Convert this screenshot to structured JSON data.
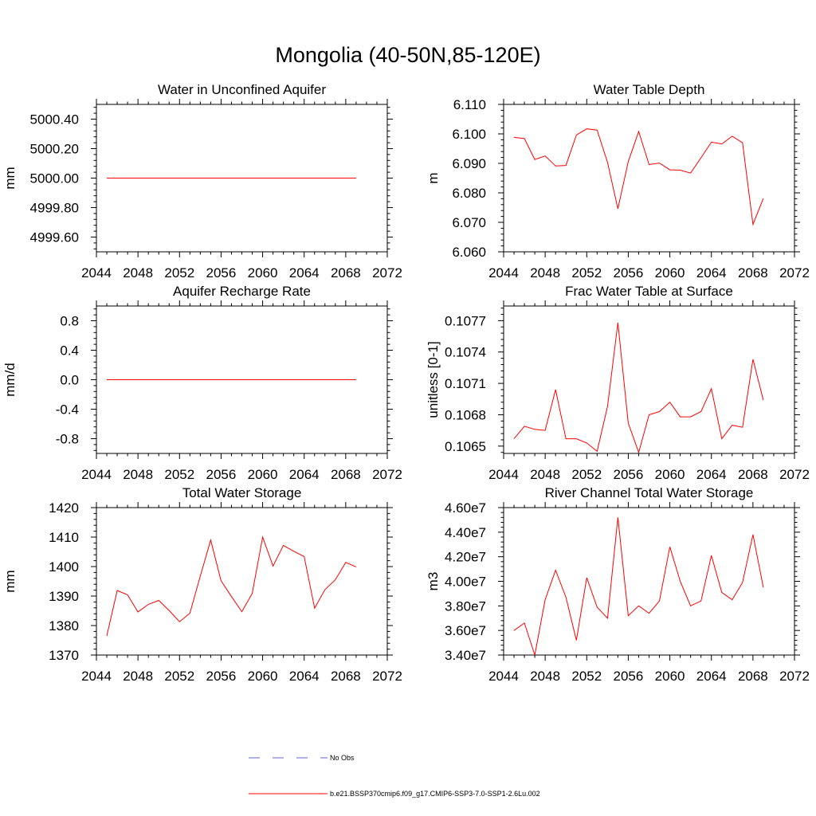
{
  "figure": {
    "title": "Mongolia (40-50N,85-120E)"
  },
  "legend": {
    "items": [
      {
        "label": "No Obs",
        "color": "#6666cc",
        "dash": "dashed"
      },
      {
        "label": "b.e21.BSSP370cmip6.f09_g17.CMIP6-SSP3-7.0-SSP1-2.6Lu.002",
        "color": "#ff0000",
        "dash": "solid"
      }
    ]
  },
  "chart_data": [
    {
      "type": "line",
      "title": "Water in Unconfined Aquifer",
      "xlabel": "",
      "ylabel": "mm",
      "xlim": [
        2044,
        2072
      ],
      "ylim": [
        4999.5,
        5000.5
      ],
      "xticks": [
        2044,
        2048,
        2052,
        2056,
        2060,
        2064,
        2068,
        2072
      ],
      "yticks": [
        4999.6,
        4999.8,
        5000.0,
        5000.2,
        5000.4
      ],
      "ytick_labels": [
        "4999.60",
        "4999.80",
        "5000.00",
        "5000.20",
        "5000.40"
      ],
      "grid": false,
      "series": [
        {
          "color": "#ff0000",
          "x": [
            2045,
            2069
          ],
          "y": [
            5000.0,
            5000.0
          ]
        }
      ]
    },
    {
      "type": "line",
      "title": "Water Table Depth",
      "xlabel": "",
      "ylabel": "m",
      "xlim": [
        2044,
        2072
      ],
      "ylim": [
        6.06,
        6.11
      ],
      "xticks": [
        2044,
        2048,
        2052,
        2056,
        2060,
        2064,
        2068,
        2072
      ],
      "yticks": [
        6.06,
        6.07,
        6.08,
        6.09,
        6.1,
        6.11
      ],
      "ytick_labels": [
        "6.060",
        "6.070",
        "6.080",
        "6.090",
        "6.100",
        "6.110"
      ],
      "grid": false,
      "series": [
        {
          "color": "#ff0000",
          "x": [
            2045,
            2046,
            2047,
            2048,
            2049,
            2050,
            2051,
            2052,
            2053,
            2054,
            2055,
            2056,
            2057,
            2058,
            2059,
            2060,
            2061,
            2062,
            2063,
            2064,
            2065,
            2066,
            2067,
            2068,
            2069
          ],
          "y": [
            6.0988,
            6.0984,
            6.0913,
            6.0925,
            6.0891,
            6.0893,
            6.0996,
            6.1017,
            6.1013,
            6.0903,
            6.0746,
            6.0906,
            6.1008,
            6.0896,
            6.0901,
            6.0878,
            6.0877,
            6.0867,
            6.0919,
            6.0972,
            6.0966,
            6.0992,
            6.097,
            6.0693,
            6.0781
          ]
        }
      ]
    },
    {
      "type": "line",
      "title": "Aquifer Recharge Rate",
      "xlabel": "",
      "ylabel": "mm/d",
      "xlim": [
        2044,
        2072
      ],
      "ylim": [
        -1.0,
        1.0
      ],
      "xticks": [
        2044,
        2048,
        2052,
        2056,
        2060,
        2064,
        2068,
        2072
      ],
      "yticks": [
        -0.8,
        -0.4,
        0.0,
        0.4,
        0.8
      ],
      "ytick_labels": [
        "-0.8",
        "-0.4",
        "0.0",
        "0.4",
        "0.8"
      ],
      "grid": false,
      "series": [
        {
          "color": "#ff0000",
          "x": [
            2045,
            2069
          ],
          "y": [
            0.0,
            0.0
          ]
        }
      ]
    },
    {
      "type": "line",
      "title": "Frac Water Table at Surface",
      "xlabel": "",
      "ylabel": "unitless [0-1]",
      "xlim": [
        2044,
        2072
      ],
      "ylim": [
        0.10643,
        0.10784
      ],
      "xticks": [
        2044,
        2048,
        2052,
        2056,
        2060,
        2064,
        2068,
        2072
      ],
      "yticks": [
        0.1065,
        0.1068,
        0.1071,
        0.1074,
        0.1077
      ],
      "ytick_labels": [
        "0.1065",
        "0.1068",
        "0.1071",
        "0.1074",
        "0.1077"
      ],
      "grid": false,
      "series": [
        {
          "color": "#ff0000",
          "x": [
            2045,
            2046,
            2047,
            2048,
            2049,
            2050,
            2051,
            2052,
            2053,
            2054,
            2055,
            2056,
            2057,
            2058,
            2059,
            2060,
            2061,
            2062,
            2063,
            2064,
            2065,
            2066,
            2067,
            2068,
            2069
          ],
          "y": [
            0.10657,
            0.10669,
            0.10666,
            0.10665,
            0.10704,
            0.10657,
            0.10657,
            0.10653,
            0.10645,
            0.10688,
            0.10768,
            0.10672,
            0.10644,
            0.1068,
            0.10683,
            0.10692,
            0.10678,
            0.10678,
            0.10683,
            0.10705,
            0.10657,
            0.1067,
            0.10668,
            0.10733,
            0.10694
          ]
        }
      ]
    },
    {
      "type": "line",
      "title": "Total Water Storage",
      "xlabel": "",
      "ylabel": "mm",
      "xlim": [
        2044,
        2072
      ],
      "ylim": [
        1370,
        1420
      ],
      "xticks": [
        2044,
        2048,
        2052,
        2056,
        2060,
        2064,
        2068,
        2072
      ],
      "yticks": [
        1370,
        1380,
        1390,
        1400,
        1410,
        1420
      ],
      "ytick_labels": [
        "1370",
        "1380",
        "1390",
        "1400",
        "1410",
        "1420"
      ],
      "grid": false,
      "series": [
        {
          "color": "#ff0000",
          "x": [
            2045,
            2046,
            2047,
            2048,
            2049,
            2050,
            2051,
            2052,
            2053,
            2054,
            2055,
            2056,
            2057,
            2058,
            2059,
            2060,
            2061,
            2062,
            2063,
            2064,
            2065,
            2066,
            2067,
            2068,
            2069
          ],
          "y": [
            1376.5,
            1391.9,
            1390.4,
            1384.6,
            1387.2,
            1388.5,
            1385.1,
            1381.3,
            1384.2,
            1396.8,
            1409.0,
            1395.2,
            1389.8,
            1384.7,
            1390.9,
            1410.0,
            1400.2,
            1407.2,
            1405.2,
            1403.4,
            1385.9,
            1392.2,
            1395.5,
            1401.4,
            1399.9
          ]
        }
      ]
    },
    {
      "type": "line",
      "title": "River Channel Total Water Storage",
      "xlabel": "",
      "ylabel": "m3",
      "xlim": [
        2044,
        2072
      ],
      "ylim": [
        34000000,
        46000000
      ],
      "xticks": [
        2044,
        2048,
        2052,
        2056,
        2060,
        2064,
        2068,
        2072
      ],
      "yticks": [
        34000000,
        36000000,
        38000000,
        40000000,
        42000000,
        44000000,
        46000000
      ],
      "ytick_labels": [
        "3.40e7",
        "3.60e7",
        "3.80e7",
        "4.00e7",
        "4.20e7",
        "4.40e7",
        "4.60e7"
      ],
      "grid": false,
      "series": [
        {
          "color": "#ff0000",
          "x": [
            2045,
            2046,
            2047,
            2048,
            2049,
            2050,
            2051,
            2052,
            2053,
            2054,
            2055,
            2056,
            2057,
            2058,
            2059,
            2060,
            2061,
            2062,
            2063,
            2064,
            2065,
            2066,
            2067,
            2068,
            2069
          ],
          "y": [
            36000000,
            36600000,
            34000000,
            38500000,
            40900000,
            38700000,
            35200000,
            40300000,
            37900000,
            37000000,
            45200000,
            37200000,
            38000000,
            37400000,
            38400000,
            42800000,
            40000000,
            38000000,
            38400000,
            42100000,
            39100000,
            38500000,
            39900000,
            43800000,
            39500000
          ]
        }
      ]
    }
  ]
}
